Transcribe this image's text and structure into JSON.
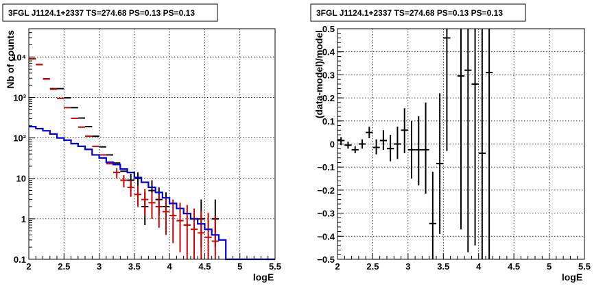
{
  "chart_data": [
    {
      "type": "scatter",
      "title": "3FGL J1124.1+2337 TS=274.68 PS=0.13 PS=0.13",
      "xlabel": "logE",
      "ylabel": "Nb of counts",
      "xlim": [
        2,
        5.5
      ],
      "ylim": [
        0.1,
        50000
      ],
      "yscale": "log",
      "grid": true,
      "x_ticks": [
        "2",
        "2.5",
        "3",
        "3.5",
        "4",
        "4.5",
        "5",
        "5.5"
      ],
      "y_ticks": [
        "0.1",
        "1",
        "10",
        "10²",
        "10³",
        "10⁴"
      ],
      "series": [
        {
          "color": "#000000",
          "points": [
            {
              "x": 2.05,
              "y": 9000
            },
            {
              "x": 2.15,
              "y": 6500
            },
            {
              "x": 2.25,
              "y": 2900
            },
            {
              "x": 2.35,
              "y": 1650
            },
            {
              "x": 2.45,
              "y": 1650
            },
            {
              "x": 2.55,
              "y": 980
            },
            {
              "x": 2.65,
              "y": 560
            },
            {
              "x": 2.75,
              "y": 310
            },
            {
              "x": 2.85,
              "y": 190
            },
            {
              "x": 2.95,
              "y": 110
            },
            {
              "x": 3.05,
              "y": 60
            },
            {
              "x": 3.15,
              "y": 38
            },
            {
              "x": 3.25,
              "y": 24
            },
            {
              "x": 3.35,
              "y": 15
            },
            {
              "x": 3.45,
              "y": 9,
              "lo": 6,
              "hi": 13
            },
            {
              "x": 3.55,
              "y": 10,
              "lo": 6.5,
              "hi": 14
            },
            {
              "x": 3.65,
              "y": 2,
              "lo": 0.7,
              "hi": 4.5
            },
            {
              "x": 3.75,
              "y": 5,
              "lo": 2.5,
              "hi": 9
            },
            {
              "x": 3.85,
              "y": 3,
              "lo": 1.2,
              "hi": 6
            },
            {
              "x": 3.95,
              "y": 2,
              "lo": 0.7,
              "hi": 4.5
            },
            {
              "x": 4.45,
              "y": 1,
              "lo": 0.2,
              "hi": 3
            },
            {
              "x": 4.65,
              "y": 1,
              "lo": 0.2,
              "hi": 3
            }
          ]
        },
        {
          "color": "#cc0000",
          "points": [
            {
              "x": 2.05,
              "y": 9000
            },
            {
              "x": 2.15,
              "y": 6500
            },
            {
              "x": 2.25,
              "y": 2850
            },
            {
              "x": 2.35,
              "y": 1600
            },
            {
              "x": 2.45,
              "y": 950
            },
            {
              "x": 2.55,
              "y": 560
            },
            {
              "x": 2.65,
              "y": 305
            },
            {
              "x": 2.75,
              "y": 185
            },
            {
              "x": 2.85,
              "y": 110
            },
            {
              "x": 2.95,
              "y": 62
            },
            {
              "x": 3.05,
              "y": 38
            },
            {
              "x": 3.15,
              "y": 23
            },
            {
              "x": 3.25,
              "y": 14,
              "lo": 10,
              "hi": 18
            },
            {
              "x": 3.35,
              "y": 9,
              "lo": 6,
              "hi": 12
            },
            {
              "x": 3.45,
              "y": 6,
              "lo": 3.5,
              "hi": 9
            },
            {
              "x": 3.55,
              "y": 4,
              "lo": 2,
              "hi": 6.5
            },
            {
              "x": 3.65,
              "y": 3,
              "lo": 1.2,
              "hi": 5.5
            },
            {
              "x": 3.75,
              "y": 2.5,
              "lo": 1,
              "hi": 4.5
            },
            {
              "x": 3.85,
              "y": 2,
              "lo": 0.6,
              "hi": 4
            },
            {
              "x": 3.95,
              "y": 1.5,
              "lo": 0.4,
              "hi": 3.5
            },
            {
              "x": 4.05,
              "y": 1.2,
              "lo": 0.25,
              "hi": 3
            },
            {
              "x": 4.15,
              "y": 0.9,
              "lo": 0.15,
              "hi": 2.5
            },
            {
              "x": 4.25,
              "y": 0.7,
              "lo": 0.1,
              "hi": 2.2
            },
            {
              "x": 4.35,
              "y": 0.55,
              "lo": 0.1,
              "hi": 1.8
            },
            {
              "x": 4.45,
              "y": 0.45,
              "lo": 0.1,
              "hi": 1.6
            },
            {
              "x": 4.55,
              "y": 0.35,
              "lo": 0.1,
              "hi": 1.4
            },
            {
              "x": 4.65,
              "y": 0.28,
              "lo": 0.1,
              "hi": 1.2
            }
          ]
        },
        {
          "color": "#0000dd",
          "style": "step",
          "bin_edges": [
            2,
            2.1,
            2.2,
            2.3,
            2.4,
            2.5,
            2.6,
            2.7,
            2.8,
            2.9,
            3,
            3.1,
            3.2,
            3.3,
            3.4,
            3.5,
            3.6,
            3.7,
            3.8,
            3.9,
            4,
            4.1,
            4.2,
            4.3,
            4.4,
            4.5,
            4.6,
            4.7,
            4.8,
            4.9,
            5,
            5.1,
            5.2,
            5.3,
            5.4,
            5.5
          ],
          "values": [
            190,
            170,
            150,
            125,
            100,
            88,
            72,
            62,
            52,
            38,
            32,
            25,
            22,
            17,
            14,
            10.5,
            8,
            6,
            4.5,
            3.3,
            2.4,
            1.8,
            1.35,
            1,
            0.75,
            0.55,
            0.4,
            0.3,
            0.1,
            0.1,
            0.1,
            0.1,
            0.1,
            0.1,
            0.1
          ]
        }
      ]
    },
    {
      "type": "scatter",
      "title": "3FGL J1124.1+2337 TS=274.68 PS=0.13 PS=0.13",
      "xlabel": "logE",
      "ylabel": "(data-model)/model",
      "xlim": [
        2,
        5.5
      ],
      "ylim": [
        -0.5,
        0.5
      ],
      "grid": true,
      "x_ticks": [
        "2",
        "2.5",
        "3",
        "3.5",
        "4",
        "4.5",
        "5",
        "5.5"
      ],
      "y_ticks": [
        "−0.5",
        "−0.4",
        "−0.3",
        "−0.2",
        "−0.1",
        "0",
        "0.1",
        "0.2",
        "0.3",
        "0.4",
        "0.5"
      ],
      "series": [
        {
          "color": "#000000",
          "points": [
            {
              "x": 2.05,
              "y": 0.015,
              "lo": -0.005,
              "hi": 0.03
            },
            {
              "x": 2.15,
              "y": -0.005,
              "lo": -0.02,
              "hi": 0.01
            },
            {
              "x": 2.25,
              "y": -0.025,
              "lo": -0.04,
              "hi": -0.01
            },
            {
              "x": 2.35,
              "y": 0.0,
              "lo": -0.02,
              "hi": 0.02
            },
            {
              "x": 2.45,
              "y": 0.05,
              "lo": 0.025,
              "hi": 0.075
            },
            {
              "x": 2.55,
              "y": -0.015,
              "lo": -0.045,
              "hi": 0.02
            },
            {
              "x": 2.65,
              "y": 0.015,
              "lo": -0.025,
              "hi": 0.06
            },
            {
              "x": 2.75,
              "y": -0.02,
              "lo": -0.075,
              "hi": 0.04
            },
            {
              "x": 2.85,
              "y": 0.0,
              "lo": -0.065,
              "hi": 0.075
            },
            {
              "x": 2.95,
              "y": 0.06,
              "lo": -0.04,
              "hi": 0.155
            },
            {
              "x": 3.05,
              "y": -0.025,
              "lo": -0.15,
              "hi": 0.1
            },
            {
              "x": 3.15,
              "y": -0.025,
              "lo": -0.18,
              "hi": 0.12
            },
            {
              "x": 3.25,
              "y": -0.025,
              "lo": -0.215,
              "hi": 0.18
            },
            {
              "x": 3.35,
              "y": -0.345,
              "lo": -0.5,
              "hi": -0.12
            },
            {
              "x": 3.45,
              "y": -0.085,
              "lo": -0.39,
              "hi": 0.22
            },
            {
              "x": 3.55,
              "y": 0.46,
              "lo": -0.03,
              "hi": 0.5
            },
            {
              "x": 3.75,
              "y": 0.295,
              "lo": -0.37,
              "hi": 0.5
            },
            {
              "x": 3.85,
              "y": 0.32,
              "lo": -0.47,
              "hi": 0.5
            },
            {
              "x": 3.95,
              "y": 0.26,
              "lo": -0.44,
              "hi": 0.5
            },
            {
              "x": 4.05,
              "y": -0.04,
              "lo": -0.5,
              "hi": 0.5
            },
            {
              "x": 4.15,
              "y": 0.31,
              "lo": -0.5,
              "hi": 0.5
            }
          ]
        }
      ]
    }
  ]
}
